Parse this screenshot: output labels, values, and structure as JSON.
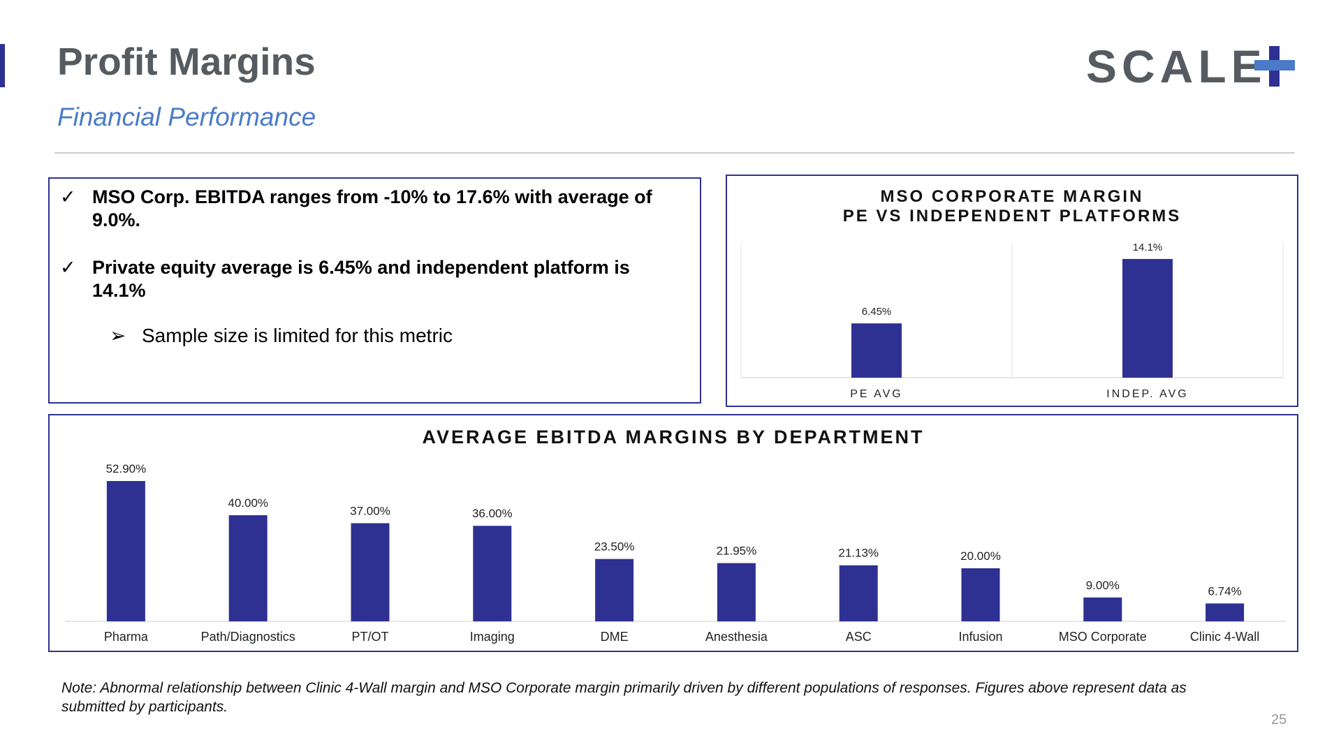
{
  "header": {
    "title": "Profit Margins",
    "subtitle": "Financial Performance",
    "logo_text": "SCALE"
  },
  "colors": {
    "accent": "#2e3192",
    "bar": "#2e3192",
    "subtitle": "#4a7bc8",
    "title": "#555b61"
  },
  "icons": {
    "check": "check-icon",
    "arrow": "arrow-bullet-icon",
    "logo_plus": "plus-icon"
  },
  "bullets": {
    "items": [
      {
        "mark": "✓",
        "text": "MSO Corp. EBITDA ranges from -10% to 17.6% with average of 9.0%."
      },
      {
        "mark": "✓",
        "text": "Private equity average is 6.45% and independent platform is 14.1%"
      }
    ],
    "sub_item": {
      "mark": "➢",
      "text": "Sample size is limited for this metric"
    }
  },
  "chart_data": [
    {
      "type": "bar",
      "title": "MSO CORPORATE MARGIN\nPE VS INDEPENDENT PLATFORMS",
      "title_lines": [
        "MSO CORPORATE MARGIN",
        "PE VS INDEPENDENT PLATFORMS"
      ],
      "categories": [
        "PE AVG",
        "INDEP. AVG"
      ],
      "values": [
        6.45,
        14.1
      ],
      "data_labels": [
        "6.45%",
        "14.1%"
      ],
      "ylim": [
        0,
        16
      ],
      "grid": false,
      "legend": "none"
    },
    {
      "type": "bar",
      "title": "AVERAGE EBITDA MARGINS BY DEPARTMENT",
      "categories": [
        "Pharma",
        "Path/Diagnostics",
        "PT/OT",
        "Imaging",
        "DME",
        "Anesthesia",
        "ASC",
        "Infusion",
        "MSO Corporate",
        "Clinic 4-Wall"
      ],
      "values": [
        52.9,
        40.0,
        37.0,
        36.0,
        23.5,
        21.95,
        21.13,
        20.0,
        9.0,
        6.74
      ],
      "data_labels": [
        "52.90%",
        "40.00%",
        "37.00%",
        "36.00%",
        "23.50%",
        "21.95%",
        "21.13%",
        "20.00%",
        "9.00%",
        "6.74%"
      ],
      "ylim": [
        0,
        55
      ],
      "grid": false,
      "legend": "none"
    }
  ],
  "footer": {
    "note": "Note: Abnormal relationship between Clinic 4-Wall margin and MSO Corporate margin primarily driven by different populations of responses. Figures above represent data as submitted by participants.",
    "page_number": "25"
  }
}
